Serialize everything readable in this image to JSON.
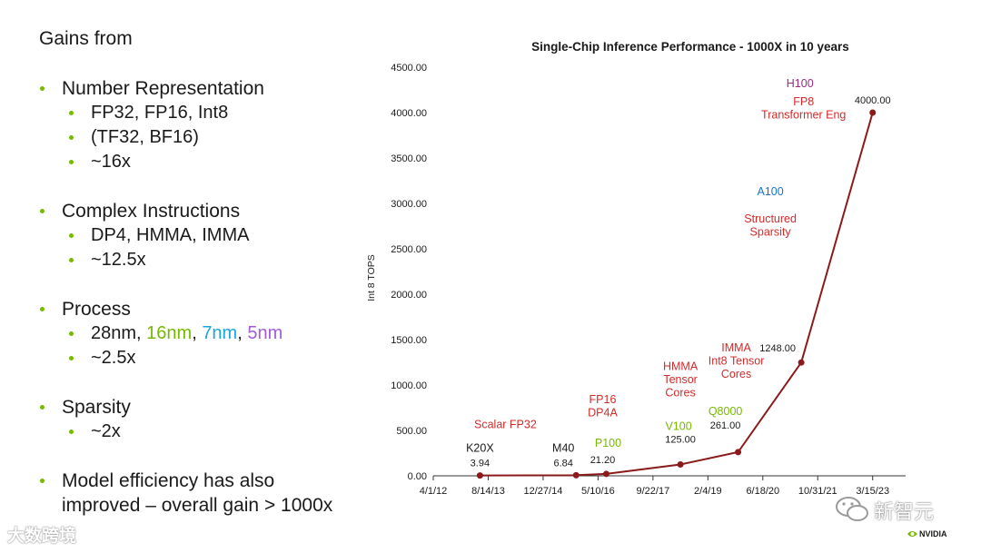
{
  "slide": {
    "heading": "Gains from",
    "bullets": {
      "number_rep": {
        "title": "Number Representation",
        "subs": [
          "FP32, FP16, Int8",
          "(TF32, BF16)",
          "~16x"
        ]
      },
      "complex": {
        "title": "Complex Instructions",
        "subs": [
          "DP4, HMMA, IMMA",
          "~12.5x"
        ]
      },
      "process": {
        "title": "Process",
        "node_prefix": "28nm, ",
        "node_16": "16nm",
        "sep1": ", ",
        "node_7": "7nm",
        "sep2": ", ",
        "node_5": "5nm",
        "gain": "~2.5x"
      },
      "sparsity": {
        "title": "Sparsity",
        "gain": "~2x"
      },
      "model": {
        "line1": "Model efficiency has also",
        "line2": "improved – overall gain > 1000x"
      }
    }
  },
  "colors": {
    "bullet": "#76b900",
    "line": "#8b1a1a",
    "red_label": "#d42a2a",
    "green_label": "#76b900",
    "blue_label": "#1a73c4",
    "purple_label": "#a0287c"
  },
  "chart_data": {
    "type": "line",
    "title": "Single-Chip Inference Performance - 1000X in 10 years",
    "xlabel": "",
    "ylabel": "Int 8 TOPS",
    "ylim": [
      0,
      4500
    ],
    "yticks": [
      "0.00",
      "500.00",
      "1000.00",
      "1500.00",
      "2000.00",
      "2500.00",
      "3000.00",
      "3500.00",
      "4000.00",
      "4500.00"
    ],
    "xticks": [
      "4/1/12",
      "8/14/13",
      "12/27/14",
      "5/10/16",
      "9/22/17",
      "2/4/19",
      "6/18/20",
      "10/31/21",
      "3/15/23"
    ],
    "xrange_index": [
      0,
      8.6
    ],
    "points": [
      {
        "x": 0.85,
        "y": 3.94,
        "value_label": "3.94",
        "chip": "K20X",
        "chip_color": "#1a1a1a",
        "feature": [
          "Scalar FP32"
        ]
      },
      {
        "x": 2.6,
        "y": 6.84,
        "value_label": "6.84",
        "chip": "M40",
        "chip_color": "#1a1a1a",
        "feature": []
      },
      {
        "x": 3.15,
        "y": 21.2,
        "value_label": "21.20",
        "chip": "P100",
        "chip_color": "#76b900",
        "feature": [
          "FP16",
          "DP4A"
        ]
      },
      {
        "x": 4.5,
        "y": 125.0,
        "value_label": "125.00",
        "chip": "V100",
        "chip_color": "#76b900",
        "feature": [
          "HMMA",
          "Tensor",
          "Cores"
        ]
      },
      {
        "x": 5.55,
        "y": 261.0,
        "value_label": "261.00",
        "chip": "Q8000",
        "chip_color": "#76b900",
        "feature": [
          "IMMA",
          "Int8 Tensor",
          "Cores"
        ]
      },
      {
        "x": 6.7,
        "y": 1248.0,
        "value_label": "1248.00",
        "chip": "A100",
        "chip_color": "#1a73c4",
        "feature": [
          "Structured",
          "Sparsity"
        ]
      },
      {
        "x": 8.0,
        "y": 4000.0,
        "value_label": "4000.00",
        "chip": "H100",
        "chip_color": "#a0287c",
        "feature": [
          "FP8",
          "Transformer Eng"
        ]
      }
    ]
  },
  "watermarks": {
    "left": "大数跨境",
    "right": "新智元",
    "brand": "NVIDIA"
  }
}
